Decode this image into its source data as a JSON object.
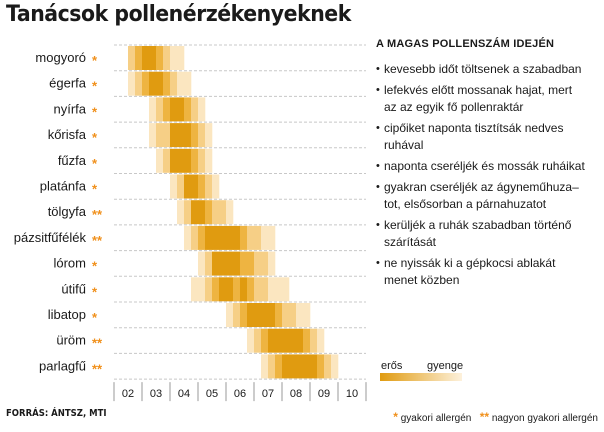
{
  "title": "Tanácsok pollenérzékenyeknek",
  "chart_data": {
    "type": "heatmap",
    "x_tick_labels": [
      "02",
      "03",
      "04",
      "05",
      "06",
      "07",
      "08",
      "09",
      "10"
    ],
    "x_unit": "month",
    "value_scale": "0 = none, 1 = gyenge (weak) ... 4 = erős (strong)",
    "rows": [
      {
        "name": "mogyoró",
        "stars": "*",
        "values": [
          0,
          0,
          2,
          3,
          4,
          4,
          3,
          2,
          1,
          1,
          0,
          0,
          0,
          0,
          0,
          0,
          0,
          0,
          0,
          0,
          0,
          0,
          0,
          0,
          0,
          0,
          0,
          0,
          0,
          0,
          0,
          0,
          0,
          0,
          0,
          0
        ]
      },
      {
        "name": "égerfa",
        "stars": "*",
        "values": [
          0,
          0,
          1,
          2,
          3,
          4,
          4,
          3,
          2,
          1,
          1,
          0,
          0,
          0,
          0,
          0,
          0,
          0,
          0,
          0,
          0,
          0,
          0,
          0,
          0,
          0,
          0,
          0,
          0,
          0,
          0,
          0,
          0,
          0,
          0,
          0
        ]
      },
      {
        "name": "nyírfa",
        "stars": "*",
        "values": [
          0,
          0,
          0,
          0,
          0,
          1,
          2,
          3,
          4,
          4,
          3,
          2,
          1,
          0,
          0,
          0,
          0,
          0,
          0,
          0,
          0,
          0,
          0,
          0,
          0,
          0,
          0,
          0,
          0,
          0,
          0,
          0,
          0,
          0,
          0,
          0
        ]
      },
      {
        "name": "kőrisfa",
        "stars": "*",
        "values": [
          0,
          0,
          0,
          0,
          0,
          1,
          2,
          2,
          4,
          4,
          4,
          3,
          2,
          1,
          0,
          0,
          0,
          0,
          0,
          0,
          0,
          0,
          0,
          0,
          0,
          0,
          0,
          0,
          0,
          0,
          0,
          0,
          0,
          0,
          0,
          0
        ]
      },
      {
        "name": "fűzfa",
        "stars": "*",
        "values": [
          0,
          0,
          0,
          0,
          0,
          0,
          1,
          2,
          4,
          4,
          4,
          3,
          2,
          1,
          0,
          0,
          0,
          0,
          0,
          0,
          0,
          0,
          0,
          0,
          0,
          0,
          0,
          0,
          0,
          0,
          0,
          0,
          0,
          0,
          0,
          0
        ]
      },
      {
        "name": "platánfa",
        "stars": "*",
        "values": [
          0,
          0,
          0,
          0,
          0,
          0,
          0,
          0,
          1,
          2,
          4,
          4,
          3,
          2,
          1,
          0,
          0,
          0,
          0,
          0,
          0,
          0,
          0,
          0,
          0,
          0,
          0,
          0,
          0,
          0,
          0,
          0,
          0,
          0,
          0,
          0
        ]
      },
      {
        "name": "tölgyfa",
        "stars": "**",
        "values": [
          0,
          0,
          0,
          0,
          0,
          0,
          0,
          0,
          0,
          1,
          2,
          4,
          4,
          3,
          2,
          2,
          1,
          0,
          0,
          0,
          0,
          0,
          0,
          0,
          0,
          0,
          0,
          0,
          0,
          0,
          0,
          0,
          0,
          0,
          0,
          0
        ]
      },
      {
        "name": "pázsitfűfélék",
        "stars": "**",
        "values": [
          0,
          0,
          0,
          0,
          0,
          0,
          0,
          0,
          0,
          0,
          1,
          2,
          3,
          4,
          4,
          4,
          4,
          4,
          3,
          2,
          2,
          1,
          1,
          0,
          0,
          0,
          0,
          0,
          0,
          0,
          0,
          0,
          0,
          0,
          0,
          0
        ]
      },
      {
        "name": "lórom",
        "stars": "*",
        "values": [
          0,
          0,
          0,
          0,
          0,
          0,
          0,
          0,
          0,
          0,
          0,
          0,
          1,
          2,
          4,
          4,
          4,
          4,
          3,
          3,
          2,
          2,
          1,
          0,
          0,
          0,
          0,
          0,
          0,
          0,
          0,
          0,
          0,
          0,
          0,
          0
        ]
      },
      {
        "name": "útifű",
        "stars": "*",
        "values": [
          0,
          0,
          0,
          0,
          0,
          0,
          0,
          0,
          0,
          0,
          0,
          1,
          1,
          2,
          3,
          4,
          4,
          3,
          4,
          3,
          2,
          2,
          1,
          1,
          1,
          0,
          0,
          0,
          0,
          0,
          0,
          0,
          0,
          0,
          0,
          0
        ]
      },
      {
        "name": "libatop",
        "stars": "*",
        "values": [
          0,
          0,
          0,
          0,
          0,
          0,
          0,
          0,
          0,
          0,
          0,
          0,
          0,
          0,
          0,
          0,
          1,
          2,
          3,
          4,
          4,
          4,
          4,
          3,
          2,
          2,
          1,
          1,
          0,
          0,
          0,
          0,
          0,
          0,
          0,
          0
        ]
      },
      {
        "name": "üröm",
        "stars": "**",
        "values": [
          0,
          0,
          0,
          0,
          0,
          0,
          0,
          0,
          0,
          0,
          0,
          0,
          0,
          0,
          0,
          0,
          0,
          0,
          0,
          1,
          2,
          3,
          4,
          4,
          4,
          4,
          4,
          3,
          2,
          1,
          0,
          0,
          0,
          0,
          0,
          0
        ]
      },
      {
        "name": "parlagfű",
        "stars": "**",
        "values": [
          0,
          0,
          0,
          0,
          0,
          0,
          0,
          0,
          0,
          0,
          0,
          0,
          0,
          0,
          0,
          0,
          0,
          0,
          0,
          0,
          0,
          1,
          2,
          3,
          4,
          4,
          4,
          4,
          4,
          3,
          2,
          1,
          0,
          0,
          0,
          0
        ]
      }
    ],
    "legend": {
      "strong_label": "erős",
      "weak_label": "gyenge"
    },
    "colors": {
      "level1": "#fbe6c0",
      "level2": "#f6cf86",
      "level3": "#eeb441",
      "level4": "#e09b10",
      "row_separator": "#c8c8c8",
      "star": "#f0901c"
    }
  },
  "advice": {
    "title": "A MAGAS POLLENSZÁM IDEJÉN",
    "items": [
      [
        "kevesebb időt töltsenek a szabadban"
      ],
      [
        "lefekvés előtt mossanak hajat, mert",
        "az az egyik fő pollenraktár"
      ],
      [
        "cipőiket naponta tisztítsák nedves",
        "ruhával"
      ],
      [
        "naponta cseréljék és mossák ruháikat"
      ],
      [
        "gyakran cseréljék az ágyneműhuza–",
        "tot, elsősorban a párnahuzatot"
      ],
      [
        "kerüljék a ruhák szabadban történő",
        "szárítását"
      ],
      [
        "ne nyissák ki a gépkocsi ablakát",
        "menet közben"
      ]
    ]
  },
  "source": "FORRÁS: ÁNTSZ, MTI",
  "footnote": {
    "single_star": "*",
    "single_label": "gyakori allergén",
    "double_star": "**",
    "double_label": "nagyon gyakori allergén"
  }
}
